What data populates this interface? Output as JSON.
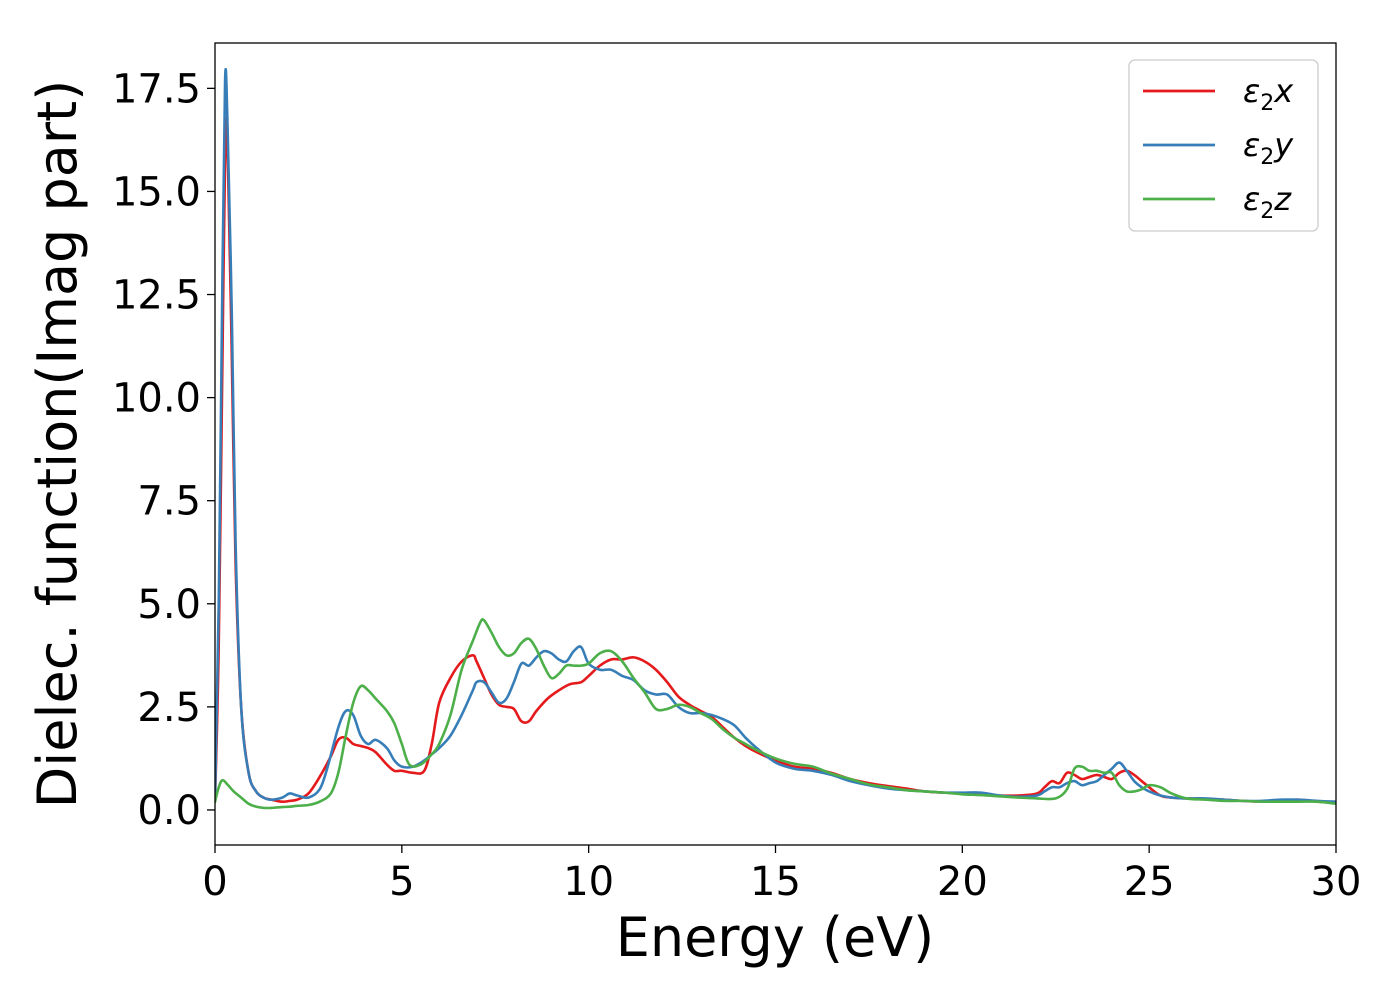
{
  "chart_data": {
    "type": "line",
    "title": "",
    "xlabel": "Energy (eV)",
    "ylabel": "Dielec. function(Imag part)",
    "xlim": [
      0,
      30
    ],
    "ylim": [
      -0.85,
      18.6
    ],
    "xticks": [
      0,
      5,
      10,
      15,
      20,
      25,
      30
    ],
    "xtick_labels": [
      "0",
      "5",
      "10",
      "15",
      "20",
      "25",
      "30"
    ],
    "yticks": [
      0.0,
      2.5,
      5.0,
      7.5,
      10.0,
      12.5,
      15.0,
      17.5
    ],
    "ytick_labels": [
      "0.0",
      "2.5",
      "5.0",
      "7.5",
      "10.0",
      "12.5",
      "15.0",
      "17.5"
    ],
    "grid": false,
    "legend_position": "top-right",
    "series": [
      {
        "name": "ε₂x",
        "legend_main": "ε",
        "legend_sub": "2",
        "legend_suffix": "x",
        "color": "#e41a1c",
        "x": [
          0,
          0.1,
          0.2,
          0.28,
          0.35,
          0.45,
          0.55,
          0.7,
          0.9,
          1.1,
          1.3,
          1.5,
          1.8,
          2.0,
          2.2,
          2.5,
          2.8,
          3.1,
          3.3,
          3.5,
          3.7,
          3.9,
          4.1,
          4.3,
          4.6,
          4.8,
          5.0,
          5.3,
          5.6,
          5.8,
          6.0,
          6.3,
          6.6,
          6.9,
          7.0,
          7.2,
          7.4,
          7.6,
          7.8,
          8.0,
          8.2,
          8.4,
          8.6,
          8.9,
          9.2,
          9.5,
          9.8,
          10.0,
          10.3,
          10.6,
          10.9,
          11.2,
          11.5,
          11.8,
          12.1,
          12.4,
          12.7,
          13.0,
          13.3,
          13.6,
          13.9,
          14.2,
          14.5,
          15.0,
          15.5,
          16.0,
          16.5,
          17.0,
          17.5,
          18.0,
          18.5,
          19.0,
          19.5,
          20.0,
          20.5,
          21.0,
          21.5,
          22.0,
          22.2,
          22.4,
          22.6,
          22.8,
          23.0,
          23.2,
          23.4,
          23.6,
          23.8,
          24.0,
          24.2,
          24.4,
          24.6,
          24.8,
          25.0,
          25.3,
          25.6,
          26.0,
          26.5,
          27.0,
          27.5,
          28.0,
          28.5,
          29.0,
          29.5,
          30.0
        ],
        "values": [
          0.2,
          4.0,
          11.0,
          16.5,
          15.5,
          11.0,
          6.0,
          2.5,
          0.9,
          0.45,
          0.3,
          0.25,
          0.2,
          0.22,
          0.25,
          0.4,
          0.8,
          1.3,
          1.7,
          1.75,
          1.6,
          1.55,
          1.5,
          1.4,
          1.1,
          0.95,
          0.95,
          0.9,
          0.95,
          1.6,
          2.6,
          3.2,
          3.6,
          3.75,
          3.6,
          3.2,
          2.8,
          2.55,
          2.5,
          2.45,
          2.15,
          2.15,
          2.4,
          2.7,
          2.9,
          3.05,
          3.1,
          3.25,
          3.5,
          3.65,
          3.65,
          3.7,
          3.6,
          3.4,
          3.1,
          2.75,
          2.55,
          2.4,
          2.25,
          2.0,
          1.75,
          1.55,
          1.4,
          1.2,
          1.05,
          1.0,
          0.9,
          0.75,
          0.65,
          0.58,
          0.52,
          0.45,
          0.42,
          0.4,
          0.38,
          0.35,
          0.35,
          0.4,
          0.55,
          0.7,
          0.65,
          0.9,
          0.85,
          0.75,
          0.8,
          0.85,
          0.8,
          0.75,
          0.9,
          0.95,
          0.85,
          0.7,
          0.55,
          0.35,
          0.3,
          0.28,
          0.27,
          0.25,
          0.22,
          0.2,
          0.22,
          0.25,
          0.2,
          0.18
        ]
      },
      {
        "name": "ε₂y",
        "legend_main": "ε",
        "legend_sub": "2",
        "legend_suffix": "y",
        "color": "#377eb8",
        "x": [
          0,
          0.1,
          0.2,
          0.27,
          0.33,
          0.45,
          0.55,
          0.7,
          0.9,
          1.1,
          1.3,
          1.5,
          1.8,
          2.0,
          2.2,
          2.5,
          2.8,
          3.0,
          3.3,
          3.5,
          3.7,
          3.9,
          4.1,
          4.3,
          4.6,
          4.8,
          5.0,
          5.3,
          5.6,
          5.8,
          6.0,
          6.3,
          6.6,
          6.9,
          7.0,
          7.2,
          7.4,
          7.6,
          7.8,
          8.0,
          8.2,
          8.4,
          8.6,
          8.8,
          9.0,
          9.2,
          9.4,
          9.6,
          9.8,
          10.0,
          10.3,
          10.6,
          10.9,
          11.2,
          11.5,
          11.8,
          12.1,
          12.4,
          12.7,
          13.0,
          13.3,
          13.6,
          13.9,
          14.2,
          14.5,
          15.0,
          15.5,
          16.0,
          16.5,
          17.0,
          17.5,
          18.0,
          18.5,
          19.0,
          19.5,
          20.0,
          20.5,
          21.0,
          21.5,
          22.0,
          22.2,
          22.4,
          22.6,
          22.8,
          23.0,
          23.2,
          23.4,
          23.6,
          23.8,
          24.0,
          24.2,
          24.4,
          24.6,
          24.8,
          25.0,
          25.3,
          25.6,
          26.0,
          26.5,
          27.0,
          27.5,
          28.0,
          28.5,
          29.0,
          29.5,
          30.0
        ],
        "values": [
          0.2,
          5.0,
          13.0,
          17.7,
          16.8,
          12.0,
          6.5,
          2.5,
          0.9,
          0.45,
          0.3,
          0.25,
          0.3,
          0.4,
          0.35,
          0.3,
          0.5,
          1.0,
          2.0,
          2.4,
          2.3,
          1.8,
          1.6,
          1.7,
          1.5,
          1.2,
          1.05,
          1.05,
          1.2,
          1.35,
          1.5,
          1.8,
          2.3,
          2.9,
          3.1,
          3.1,
          2.85,
          2.6,
          2.7,
          3.1,
          3.55,
          3.5,
          3.7,
          3.85,
          3.8,
          3.65,
          3.6,
          3.85,
          3.95,
          3.55,
          3.4,
          3.4,
          3.25,
          3.15,
          2.9,
          2.8,
          2.8,
          2.5,
          2.35,
          2.35,
          2.3,
          2.2,
          2.05,
          1.75,
          1.5,
          1.15,
          1.0,
          0.95,
          0.85,
          0.7,
          0.6,
          0.52,
          0.48,
          0.45,
          0.42,
          0.42,
          0.42,
          0.35,
          0.32,
          0.35,
          0.45,
          0.55,
          0.55,
          0.65,
          0.7,
          0.6,
          0.65,
          0.7,
          0.85,
          1.0,
          1.15,
          0.95,
          0.7,
          0.55,
          0.45,
          0.35,
          0.3,
          0.28,
          0.28,
          0.25,
          0.22,
          0.22,
          0.25,
          0.25,
          0.22,
          0.2
        ]
      },
      {
        "name": "ε₂z",
        "legend_main": "ε",
        "legend_sub": "2",
        "legend_suffix": "z",
        "color": "#4daf4a",
        "x": [
          0,
          0.1,
          0.2,
          0.35,
          0.5,
          0.7,
          0.9,
          1.1,
          1.3,
          1.5,
          1.8,
          2.0,
          2.2,
          2.5,
          2.8,
          3.1,
          3.3,
          3.5,
          3.7,
          3.9,
          4.1,
          4.3,
          4.6,
          4.8,
          5.0,
          5.2,
          5.5,
          5.8,
          6.0,
          6.3,
          6.6,
          6.9,
          7.1,
          7.2,
          7.4,
          7.6,
          7.8,
          8.0,
          8.2,
          8.4,
          8.6,
          8.8,
          9.0,
          9.2,
          9.4,
          9.6,
          9.8,
          10.0,
          10.3,
          10.6,
          10.9,
          11.2,
          11.5,
          11.8,
          12.1,
          12.4,
          12.7,
          13.0,
          13.3,
          13.6,
          13.9,
          14.2,
          14.5,
          15.0,
          15.5,
          16.0,
          16.5,
          17.0,
          17.5,
          18.0,
          18.5,
          19.0,
          19.5,
          20.0,
          20.5,
          21.0,
          21.5,
          22.0,
          22.5,
          22.8,
          23.0,
          23.2,
          23.4,
          23.6,
          23.8,
          24.0,
          24.2,
          24.4,
          24.6,
          24.8,
          25.0,
          25.3,
          25.6,
          26.0,
          26.5,
          27.0,
          27.5,
          28.0,
          28.5,
          29.0,
          29.5,
          30.0
        ],
        "values": [
          0.2,
          0.55,
          0.72,
          0.6,
          0.45,
          0.3,
          0.15,
          0.08,
          0.05,
          0.05,
          0.07,
          0.08,
          0.1,
          0.12,
          0.2,
          0.4,
          0.9,
          1.8,
          2.6,
          3.0,
          2.9,
          2.7,
          2.4,
          2.1,
          1.6,
          1.1,
          1.1,
          1.35,
          1.6,
          2.3,
          3.4,
          4.1,
          4.55,
          4.6,
          4.3,
          3.95,
          3.75,
          3.8,
          4.05,
          4.15,
          3.9,
          3.5,
          3.2,
          3.3,
          3.5,
          3.5,
          3.5,
          3.55,
          3.8,
          3.85,
          3.6,
          3.2,
          2.85,
          2.45,
          2.45,
          2.55,
          2.5,
          2.35,
          2.2,
          1.95,
          1.75,
          1.6,
          1.45,
          1.25,
          1.12,
          1.05,
          0.88,
          0.75,
          0.62,
          0.55,
          0.48,
          0.45,
          0.42,
          0.38,
          0.36,
          0.33,
          0.3,
          0.28,
          0.28,
          0.5,
          1.0,
          1.05,
          0.95,
          0.95,
          0.9,
          0.9,
          0.6,
          0.45,
          0.45,
          0.5,
          0.6,
          0.55,
          0.4,
          0.28,
          0.25,
          0.22,
          0.22,
          0.2,
          0.2,
          0.2,
          0.2,
          0.15
        ]
      }
    ]
  }
}
